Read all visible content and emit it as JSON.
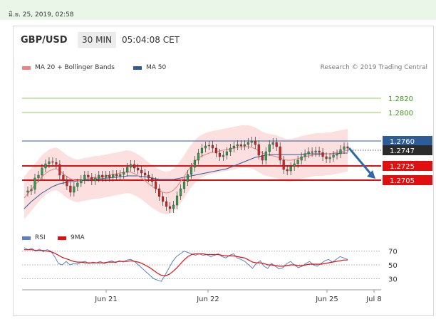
{
  "timestamp": "มิ.ย. 25, 2019, 02:58",
  "header": {
    "symbol": "GBP/USD",
    "timeframe": "30 MIN",
    "time": "05:04:08 CET"
  },
  "legend": {
    "items": [
      {
        "label": "MA 20 + Bollinger Bands",
        "color": "#f08080"
      },
      {
        "label": "MA 50",
        "color": "#2e5c99"
      }
    ],
    "credit": "Research © 2019 Trading Central"
  },
  "rsi_legend": [
    {
      "label": "RSI",
      "color": "#5b7fc7"
    },
    {
      "label": "9MA",
      "color": "#e01010"
    }
  ],
  "colors": {
    "up": "#2aa048",
    "down": "#d62020",
    "resistance": "#8fce5a",
    "pivot": "#2e5c99",
    "support": "#e01010",
    "arrow": "#2f6aa8"
  },
  "chart_data": {
    "type": "line",
    "title": "GBP/USD",
    "price_range": [
      1.2655,
      1.2855
    ],
    "x_tick_labels": [
      "Jun 21",
      "Jun 22",
      "Jun 25",
      "Jul 8"
    ],
    "levels": [
      {
        "value": 1.282,
        "label": "1.2820",
        "kind": "resistance"
      },
      {
        "value": 1.28,
        "label": "1.2800",
        "kind": "resistance"
      },
      {
        "value": 1.276,
        "label": "1.2760",
        "kind": "pivot"
      },
      {
        "value": 1.2725,
        "label": "1.2725",
        "kind": "support"
      },
      {
        "value": 1.2705,
        "label": "1.2705",
        "kind": "support"
      }
    ],
    "last_price": {
      "value": 1.2747,
      "label": "1.2747"
    },
    "series": [
      {
        "name": "GBP/USD",
        "values": [
          1.2688,
          1.269,
          1.2692,
          1.2708,
          1.2712,
          1.2722,
          1.2728,
          1.2731,
          1.273,
          1.2727,
          1.2712,
          1.2705,
          1.2697,
          1.2688,
          1.2696,
          1.2701,
          1.2706,
          1.2712,
          1.2709,
          1.2704,
          1.2708,
          1.2712,
          1.2709,
          1.2712,
          1.2709,
          1.2713,
          1.2711,
          1.2713,
          1.2716,
          1.2723,
          1.2727,
          1.2722,
          1.2719,
          1.2715,
          1.2712,
          1.2708,
          1.2703,
          1.2693,
          1.2682,
          1.2675,
          1.2668,
          1.2665,
          1.267,
          1.2683,
          1.2693,
          1.2703,
          1.2713,
          1.2723,
          1.2733,
          1.2743,
          1.275,
          1.2753,
          1.2754,
          1.275,
          1.2743,
          1.2738,
          1.274,
          1.2745,
          1.275,
          1.2753,
          1.2755,
          1.2753,
          1.2755,
          1.2758,
          1.276,
          1.2755,
          1.274,
          1.2733,
          1.2745,
          1.2755,
          1.2758,
          1.2752,
          1.2733,
          1.272,
          1.2718,
          1.2724,
          1.2728,
          1.2733,
          1.2738,
          1.2742,
          1.2745,
          1.2744,
          1.2746,
          1.2744,
          1.2738,
          1.2735,
          1.2737,
          1.274,
          1.2742,
          1.2748,
          1.2752,
          1.275
        ]
      },
      {
        "name": "MA 20",
        "values": [
          1.268,
          1.2686,
          1.2692,
          1.2698,
          1.2704,
          1.271,
          1.2714,
          1.2718,
          1.272,
          1.2721,
          1.2718,
          1.2714,
          1.271,
          1.2707,
          1.2705,
          1.2704,
          1.2705,
          1.2706,
          1.2707,
          1.2708,
          1.2709,
          1.2709,
          1.271,
          1.2711,
          1.2712,
          1.2713,
          1.2714,
          1.2715,
          1.2716,
          1.2717,
          1.2716,
          1.2714,
          1.2711,
          1.2708,
          1.2704,
          1.27,
          1.2696,
          1.2693,
          1.269,
          1.2688,
          1.2687,
          1.2688,
          1.2691,
          1.2696,
          1.2703,
          1.271,
          1.2718,
          1.2725,
          1.2731,
          1.2736,
          1.2739,
          1.2741,
          1.2743,
          1.2744,
          1.2745,
          1.2746,
          1.2747,
          1.2748,
          1.2749,
          1.275,
          1.2751,
          1.2752,
          1.2752,
          1.2752,
          1.2751,
          1.2749,
          1.2746,
          1.2743,
          1.2741,
          1.274,
          1.2739,
          1.2738,
          1.2736,
          1.2734,
          1.2733,
          1.2733,
          1.2734,
          1.2735,
          1.2737,
          1.2738,
          1.2739,
          1.274,
          1.2741,
          1.2741,
          1.2741,
          1.2742,
          1.2742,
          1.2743,
          1.2744,
          1.2745,
          1.2746,
          1.2747
        ]
      },
      {
        "name": "MA 50",
        "values": [
          1.2665,
          1.267,
          1.2675,
          1.2679,
          1.2683,
          1.2687,
          1.269,
          1.2693,
          1.2696,
          1.2698,
          1.27,
          1.2701,
          1.2702,
          1.2703,
          1.2703,
          1.2704,
          1.2704,
          1.2705,
          1.2705,
          1.2706,
          1.2706,
          1.2707,
          1.2707,
          1.2708,
          1.2708,
          1.2709,
          1.2709,
          1.271,
          1.271,
          1.2711,
          1.2711,
          1.2711,
          1.2711,
          1.271,
          1.271,
          1.2709,
          1.2708,
          1.2707,
          1.2706,
          1.2706,
          1.2706,
          1.2706,
          1.2706,
          1.2707,
          1.2708,
          1.2709,
          1.271,
          1.2711,
          1.2712,
          1.2713,
          1.2714,
          1.2715,
          1.2716,
          1.2717,
          1.2718,
          1.2719,
          1.272,
          1.2721,
          1.2723,
          1.2725,
          1.2727,
          1.2729,
          1.2731,
          1.2733,
          1.2735,
          1.2737,
          1.2738,
          1.2739,
          1.274,
          1.2741,
          1.2741,
          1.2741,
          1.2741,
          1.2741,
          1.2741,
          1.2741,
          1.2741,
          1.2741,
          1.2741,
          1.2742,
          1.2742,
          1.2742,
          1.2742,
          1.2742,
          1.2742,
          1.2742,
          1.2742,
          1.2742,
          1.2742,
          1.2743,
          1.2743,
          1.2743
        ]
      }
    ],
    "bollinger_width": 0.003,
    "forecast": {
      "from": 1.275,
      "to": 1.2705,
      "direction": "down"
    },
    "rsi": {
      "ylim": [
        20,
        80
      ],
      "tick_labels": [
        "70",
        "50",
        "30"
      ],
      "series": [
        {
          "name": "RSI",
          "values": [
            75,
            72,
            74,
            70,
            73,
            69,
            72,
            70,
            62,
            52,
            50,
            55,
            50,
            52,
            51,
            54,
            55,
            52,
            54,
            53,
            55,
            52,
            54,
            56,
            53,
            56,
            54,
            57,
            58,
            55,
            50,
            45,
            40,
            35,
            30,
            28,
            26,
            35,
            45,
            55,
            62,
            66,
            70,
            68,
            66,
            64,
            66,
            64,
            65,
            62,
            64,
            66,
            62,
            60,
            64,
            66,
            60,
            58,
            55,
            50,
            45,
            52,
            56,
            48,
            45,
            52,
            48,
            44,
            46,
            52,
            55,
            50,
            46,
            48,
            52,
            55,
            50,
            48,
            52,
            56,
            58,
            54,
            58,
            62,
            60,
            58
          ],
          "color": "#5b7fc7"
        },
        {
          "name": "9MA",
          "values": [
            72,
            72,
            72,
            71,
            71,
            71,
            70,
            69,
            67,
            64,
            61,
            59,
            57,
            55,
            54,
            54,
            53,
            53,
            53,
            53,
            53,
            53,
            54,
            54,
            54,
            55,
            55,
            55,
            56,
            55,
            54,
            52,
            49,
            46,
            42,
            38,
            35,
            34,
            36,
            40,
            45,
            51,
            57,
            62,
            65,
            66,
            66,
            66,
            65,
            65,
            65,
            65,
            64,
            63,
            63,
            63,
            62,
            61,
            60,
            57,
            54,
            53,
            53,
            52,
            50,
            50,
            49,
            48,
            48,
            49,
            50,
            50,
            49,
            49,
            50,
            51,
            51,
            51,
            51,
            52,
            53,
            54,
            55,
            56,
            57,
            57
          ],
          "color": "#e01010"
        }
      ]
    }
  }
}
